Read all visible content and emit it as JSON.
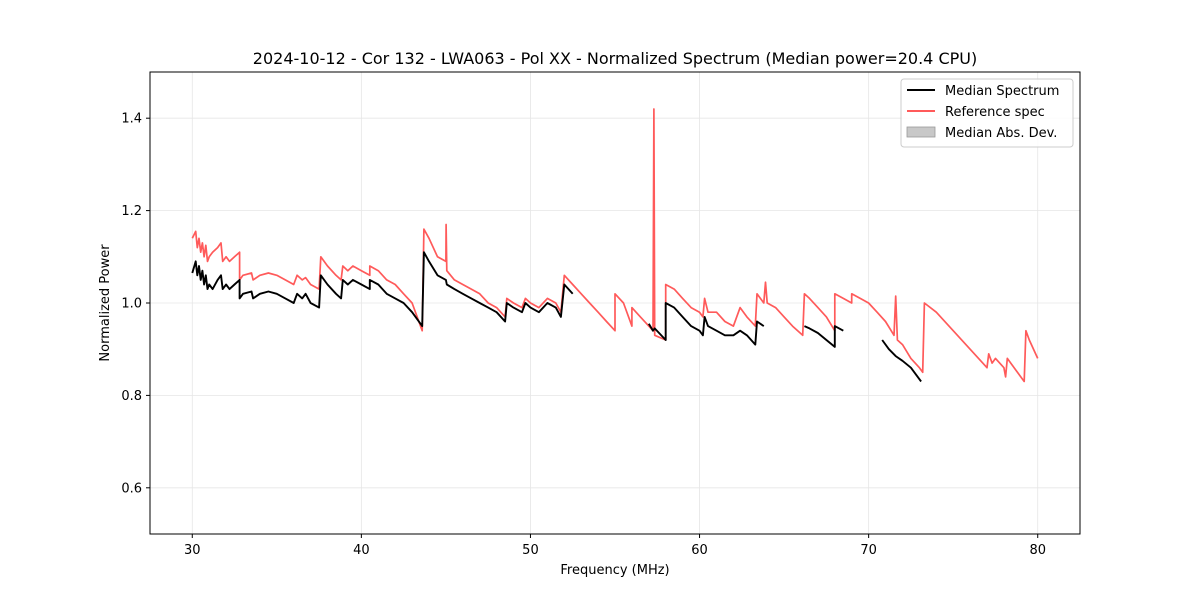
{
  "chart_data": {
    "type": "line",
    "title": "2024-10-12 - Cor 132 - LWA063 - Pol XX - Normalized Spectrum (Median power=20.4 CPU)",
    "xlabel": "Frequency (MHz)",
    "ylabel": "Normalized Power",
    "xlim": [
      27.5,
      82.5
    ],
    "ylim": [
      0.5,
      1.5
    ],
    "xticks": [
      30,
      40,
      50,
      60,
      70,
      80
    ],
    "yticks": [
      0.6,
      0.8,
      1.0,
      1.2,
      1.4
    ],
    "xtick_labels": [
      "30",
      "40",
      "50",
      "60",
      "70",
      "80"
    ],
    "ytick_labels": [
      "0.6",
      "0.8",
      "1.0",
      "1.2",
      "1.4"
    ],
    "grid": true,
    "legend_position": "top-right",
    "legend": [
      "Median Spectrum",
      "Reference spec",
      "Median Abs. Dev."
    ],
    "colors": {
      "median": "#000000",
      "reference": "#ff5a5a",
      "mad": "#c8c8c8",
      "grid": "#e6e6e6",
      "axes": "#000000"
    },
    "series": [
      {
        "name": "Reference spec",
        "segments": [
          [
            [
              30.0,
              1.14
            ],
            [
              30.2,
              1.155
            ],
            [
              30.3,
              1.12
            ],
            [
              30.4,
              1.14
            ],
            [
              30.5,
              1.11
            ],
            [
              30.6,
              1.13
            ],
            [
              30.7,
              1.1
            ],
            [
              30.8,
              1.125
            ],
            [
              30.9,
              1.09
            ],
            [
              31.0,
              1.1
            ],
            [
              31.2,
              1.11
            ],
            [
              31.5,
              1.12
            ],
            [
              31.7,
              1.13
            ],
            [
              31.8,
              1.09
            ],
            [
              32.0,
              1.1
            ],
            [
              32.2,
              1.09
            ],
            [
              32.5,
              1.1
            ],
            [
              32.8,
              1.11
            ],
            [
              32.8,
              1.05
            ],
            [
              33.0,
              1.06
            ],
            [
              33.5,
              1.065
            ],
            [
              33.6,
              1.05
            ],
            [
              34.0,
              1.06
            ],
            [
              34.5,
              1.065
            ],
            [
              35.0,
              1.06
            ],
            [
              35.5,
              1.05
            ],
            [
              36.0,
              1.04
            ],
            [
              36.2,
              1.06
            ],
            [
              36.5,
              1.05
            ],
            [
              36.7,
              1.055
            ],
            [
              37.0,
              1.04
            ],
            [
              37.5,
              1.03
            ],
            [
              37.6,
              1.1
            ],
            [
              38.0,
              1.08
            ],
            [
              38.5,
              1.06
            ],
            [
              38.8,
              1.05
            ],
            [
              38.9,
              1.08
            ],
            [
              39.2,
              1.07
            ],
            [
              39.5,
              1.08
            ],
            [
              40.0,
              1.07
            ],
            [
              40.5,
              1.06
            ],
            [
              40.5,
              1.08
            ],
            [
              41.0,
              1.07
            ],
            [
              41.5,
              1.05
            ],
            [
              42.0,
              1.04
            ],
            [
              42.5,
              1.02
            ],
            [
              43.0,
              1.0
            ],
            [
              43.6,
              0.94
            ],
            [
              43.7,
              1.16
            ],
            [
              44.0,
              1.14
            ],
            [
              44.5,
              1.1
            ],
            [
              45.0,
              1.09
            ],
            [
              45.01,
              1.17
            ],
            [
              45.05,
              1.07
            ],
            [
              45.5,
              1.05
            ],
            [
              46.0,
              1.04
            ],
            [
              46.5,
              1.03
            ],
            [
              47.0,
              1.02
            ],
            [
              47.5,
              1.0
            ],
            [
              48.0,
              0.99
            ],
            [
              48.5,
              0.97
            ],
            [
              48.6,
              1.01
            ],
            [
              49.0,
              1.0
            ],
            [
              49.5,
              0.99
            ],
            [
              49.7,
              1.01
            ],
            [
              50.0,
              1.0
            ],
            [
              50.5,
              0.99
            ],
            [
              51.0,
              1.01
            ],
            [
              51.5,
              1.0
            ],
            [
              51.8,
              0.98
            ],
            [
              52.0,
              1.06
            ],
            [
              52.5,
              1.04
            ],
            [
              53.0,
              1.02
            ],
            [
              53.5,
              1.0
            ],
            [
              54.0,
              0.98
            ],
            [
              54.5,
              0.96
            ],
            [
              55.0,
              0.94
            ],
            [
              55.0,
              1.02
            ],
            [
              55.5,
              1.0
            ],
            [
              56.0,
              0.95
            ],
            [
              56.0,
              0.99
            ],
            [
              56.5,
              0.97
            ],
            [
              57.0,
              0.95
            ],
            [
              57.25,
              0.94
            ],
            [
              57.3,
              1.42
            ],
            [
              57.35,
              0.93
            ],
            [
              58.0,
              0.92
            ],
            [
              58.0,
              1.04
            ],
            [
              58.5,
              1.03
            ],
            [
              59.0,
              1.01
            ],
            [
              59.5,
              0.99
            ],
            [
              60.0,
              0.98
            ],
            [
              60.2,
              0.97
            ],
            [
              60.3,
              1.01
            ],
            [
              60.5,
              0.98
            ],
            [
              61.0,
              0.98
            ],
            [
              61.5,
              0.96
            ],
            [
              62.0,
              0.95
            ],
            [
              62.4,
              0.99
            ],
            [
              62.8,
              0.97
            ],
            [
              63.3,
              0.95
            ],
            [
              63.4,
              1.02
            ],
            [
              63.8,
              1.0
            ],
            [
              63.9,
              1.045
            ],
            [
              64.0,
              1.0
            ],
            [
              64.5,
              0.99
            ],
            [
              65.0,
              0.97
            ],
            [
              65.5,
              0.95
            ],
            [
              66.1,
              0.93
            ],
            [
              66.2,
              1.02
            ],
            [
              66.5,
              1.01
            ],
            [
              67.0,
              0.99
            ],
            [
              67.5,
              0.97
            ],
            [
              68.0,
              0.94
            ],
            [
              68.0,
              1.02
            ],
            [
              68.5,
              1.01
            ],
            [
              69.0,
              1.0
            ],
            [
              69.0,
              1.02
            ],
            [
              69.5,
              1.01
            ],
            [
              70.0,
              1.0
            ],
            [
              70.5,
              0.98
            ],
            [
              71.0,
              0.96
            ],
            [
              71.5,
              0.93
            ],
            [
              71.6,
              1.015
            ],
            [
              71.7,
              0.92
            ],
            [
              72.0,
              0.91
            ],
            [
              72.5,
              0.88
            ],
            [
              73.0,
              0.86
            ],
            [
              73.2,
              0.85
            ],
            [
              73.3,
              1.0
            ],
            [
              74.0,
              0.98
            ],
            [
              75.0,
              0.94
            ],
            [
              76.0,
              0.9
            ],
            [
              77.0,
              0.86
            ],
            [
              77.1,
              0.89
            ],
            [
              77.3,
              0.87
            ],
            [
              77.5,
              0.88
            ],
            [
              78.0,
              0.86
            ],
            [
              78.1,
              0.84
            ],
            [
              78.2,
              0.88
            ],
            [
              79.0,
              0.84
            ],
            [
              79.2,
              0.83
            ],
            [
              79.3,
              0.94
            ],
            [
              79.5,
              0.92
            ],
            [
              80.0,
              0.88
            ]
          ]
        ]
      },
      {
        "name": "Median Spectrum",
        "segments": [
          [
            [
              30.0,
              1.065
            ],
            [
              30.2,
              1.09
            ],
            [
              30.3,
              1.06
            ],
            [
              30.4,
              1.08
            ],
            [
              30.5,
              1.05
            ],
            [
              30.6,
              1.07
            ],
            [
              30.7,
              1.04
            ],
            [
              30.8,
              1.06
            ],
            [
              30.9,
              1.03
            ],
            [
              31.0,
              1.04
            ],
            [
              31.2,
              1.03
            ],
            [
              31.5,
              1.05
            ],
            [
              31.7,
              1.06
            ],
            [
              31.8,
              1.03
            ],
            [
              32.0,
              1.04
            ],
            [
              32.2,
              1.03
            ],
            [
              32.5,
              1.04
            ],
            [
              32.8,
              1.05
            ],
            [
              32.8,
              1.01
            ],
            [
              33.0,
              1.02
            ],
            [
              33.5,
              1.025
            ],
            [
              33.6,
              1.01
            ],
            [
              34.0,
              1.02
            ],
            [
              34.5,
              1.025
            ],
            [
              35.0,
              1.02
            ],
            [
              35.5,
              1.01
            ],
            [
              36.0,
              1.0
            ],
            [
              36.2,
              1.02
            ],
            [
              36.5,
              1.01
            ],
            [
              36.7,
              1.02
            ],
            [
              37.0,
              1.0
            ],
            [
              37.5,
              0.99
            ],
            [
              37.6,
              1.06
            ],
            [
              38.0,
              1.04
            ],
            [
              38.5,
              1.02
            ],
            [
              38.8,
              1.01
            ],
            [
              38.9,
              1.05
            ],
            [
              39.2,
              1.04
            ],
            [
              39.5,
              1.05
            ],
            [
              40.0,
              1.04
            ],
            [
              40.5,
              1.03
            ],
            [
              40.5,
              1.05
            ],
            [
              41.0,
              1.04
            ],
            [
              41.5,
              1.02
            ],
            [
              42.0,
              1.01
            ],
            [
              42.5,
              1.0
            ],
            [
              43.0,
              0.98
            ],
            [
              43.6,
              0.95
            ],
            [
              43.7,
              1.11
            ],
            [
              44.0,
              1.09
            ],
            [
              44.5,
              1.06
            ],
            [
              45.0,
              1.05
            ],
            [
              45.05,
              1.04
            ],
            [
              45.5,
              1.03
            ],
            [
              46.0,
              1.02
            ],
            [
              46.5,
              1.01
            ],
            [
              47.0,
              1.0
            ],
            [
              47.5,
              0.99
            ],
            [
              48.0,
              0.98
            ],
            [
              48.5,
              0.96
            ],
            [
              48.6,
              1.0
            ],
            [
              49.0,
              0.99
            ],
            [
              49.5,
              0.98
            ],
            [
              49.7,
              1.0
            ],
            [
              50.0,
              0.99
            ],
            [
              50.5,
              0.98
            ],
            [
              51.0,
              1.0
            ],
            [
              51.5,
              0.99
            ],
            [
              51.8,
              0.97
            ],
            [
              52.0,
              1.04
            ],
            [
              52.5,
              1.02
            ]
          ],
          [
            [
              57.0,
              0.955
            ],
            [
              57.25,
              0.94
            ],
            [
              57.35,
              0.945
            ],
            [
              58.0,
              0.92
            ],
            [
              58.0,
              1.0
            ],
            [
              58.5,
              0.99
            ],
            [
              59.0,
              0.97
            ],
            [
              59.5,
              0.95
            ],
            [
              60.0,
              0.94
            ],
            [
              60.2,
              0.93
            ],
            [
              60.3,
              0.97
            ],
            [
              60.5,
              0.95
            ],
            [
              61.0,
              0.94
            ],
            [
              61.5,
              0.93
            ],
            [
              62.0,
              0.93
            ],
            [
              62.4,
              0.94
            ],
            [
              62.8,
              0.93
            ],
            [
              63.3,
              0.91
            ],
            [
              63.4,
              0.96
            ],
            [
              63.8,
              0.95
            ]
          ],
          [
            [
              66.2,
              0.95
            ],
            [
              66.5,
              0.945
            ],
            [
              67.0,
              0.935
            ],
            [
              67.5,
              0.92
            ],
            [
              68.0,
              0.905
            ],
            [
              68.0,
              0.95
            ],
            [
              68.5,
              0.94
            ]
          ],
          [
            [
              70.8,
              0.92
            ],
            [
              71.2,
              0.9
            ],
            [
              71.6,
              0.885
            ],
            [
              72.0,
              0.875
            ],
            [
              72.5,
              0.86
            ],
            [
              73.1,
              0.83
            ]
          ]
        ]
      }
    ]
  }
}
